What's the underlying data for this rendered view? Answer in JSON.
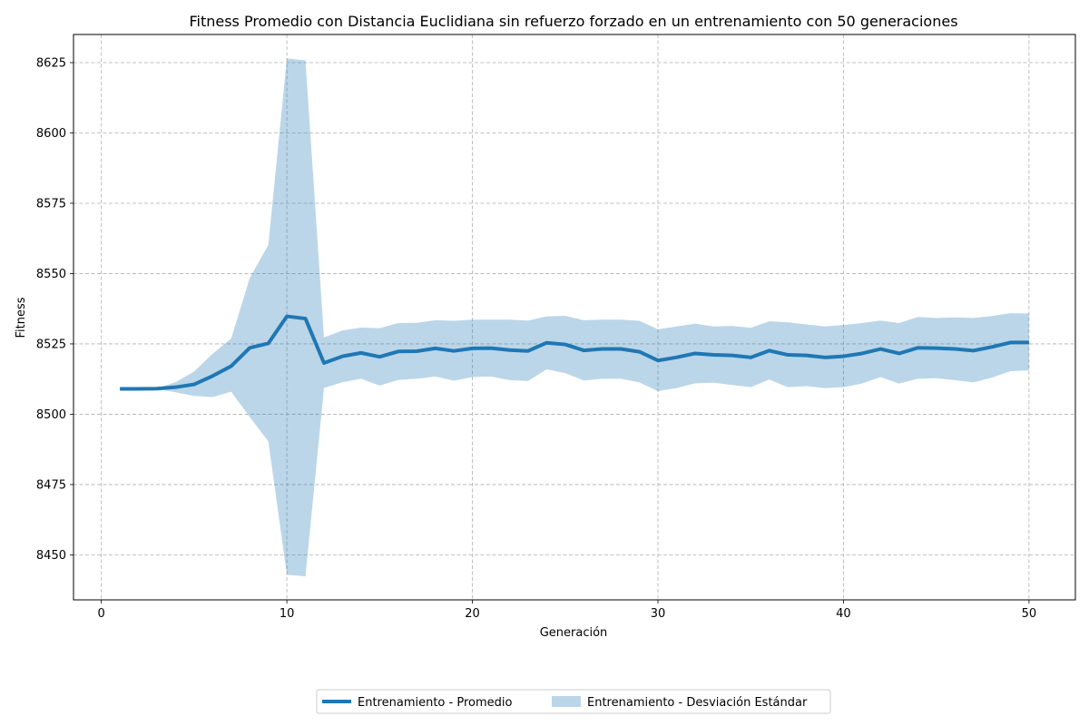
{
  "chart_data": {
    "type": "line",
    "title": "Fitness Promedio con Distancia Euclidiana sin refuerzo forzado en un entrenamiento con 50 generaciones",
    "xlabel": "Generación",
    "ylabel": "Fitness",
    "xlim": [
      -1.5,
      52.5
    ],
    "ylim": [
      8434,
      8635
    ],
    "xticks": [
      0,
      10,
      20,
      30,
      40,
      50
    ],
    "yticks": [
      8450,
      8475,
      8500,
      8525,
      8550,
      8575,
      8600,
      8625
    ],
    "grid": true,
    "legend_position": "bottom-center",
    "colors": {
      "line": "#1f77b4",
      "band": "#1f77b4",
      "grid": "#b0b0b0"
    },
    "x": [
      1,
      2,
      3,
      4,
      5,
      6,
      7,
      8,
      9,
      10,
      11,
      12,
      13,
      14,
      15,
      16,
      17,
      18,
      19,
      20,
      21,
      22,
      23,
      24,
      25,
      26,
      27,
      28,
      29,
      30,
      31,
      32,
      33,
      34,
      35,
      36,
      37,
      38,
      39,
      40,
      41,
      42,
      43,
      44,
      45,
      46,
      47,
      48,
      49,
      50
    ],
    "series": [
      {
        "name": "Entrenamiento  - Promedio",
        "kind": "line",
        "values": [
          8509.0,
          8509.0,
          8509.1,
          8509.6,
          8510.6,
          8513.6,
          8517.1,
          8523.6,
          8525.2,
          8534.8,
          8534.0,
          8518.2,
          8520.6,
          8521.8,
          8520.4,
          8522.3,
          8522.4,
          8523.4,
          8522.5,
          8523.4,
          8523.5,
          8522.8,
          8522.5,
          8525.4,
          8524.8,
          8522.7,
          8523.2,
          8523.2,
          8522.2,
          8519.1,
          8520.2,
          8521.6,
          8521.1,
          8520.9,
          8520.2,
          8522.6,
          8521.1,
          8520.9,
          8520.2,
          8520.6,
          8521.6,
          8523.2,
          8521.6,
          8523.6,
          8523.5,
          8523.2,
          8522.6,
          8523.9,
          8525.5,
          8525.5
        ]
      },
      {
        "name": "Entrenamiento  - Desviación Estándar",
        "kind": "band",
        "upper": [
          8509.0,
          8509.0,
          8509.2,
          8511.4,
          8515.2,
          8521.5,
          8526.9,
          8548.4,
          8560.2,
          8626.5,
          8625.8,
          8527.3,
          8529.8,
          8530.8,
          8530.6,
          8532.4,
          8532.5,
          8533.4,
          8533.2,
          8533.6,
          8533.6,
          8533.6,
          8533.3,
          8534.8,
          8535.0,
          8533.4,
          8533.6,
          8533.6,
          8533.2,
          8530.2,
          8531.2,
          8532.2,
          8531.2,
          8531.4,
          8530.7,
          8533.0,
          8532.7,
          8531.9,
          8531.2,
          8531.7,
          8532.4,
          8533.3,
          8532.4,
          8534.6,
          8534.2,
          8534.4,
          8534.2,
          8534.9,
          8535.9,
          8535.8
        ],
        "lower": [
          8509.0,
          8509.0,
          8509.0,
          8507.8,
          8506.5,
          8506.1,
          8508.0,
          8499.0,
          8490.4,
          8442.9,
          8442.4,
          8509.3,
          8511.4,
          8512.6,
          8510.2,
          8512.2,
          8512.6,
          8513.4,
          8511.9,
          8513.2,
          8513.4,
          8512.1,
          8511.8,
          8516.0,
          8514.6,
          8512.0,
          8512.6,
          8512.6,
          8511.3,
          8508.2,
          8509.3,
          8511.0,
          8511.2,
          8510.4,
          8509.6,
          8512.3,
          8509.6,
          8510.0,
          8509.3,
          8509.6,
          8510.9,
          8513.2,
          8510.9,
          8512.6,
          8512.8,
          8512.1,
          8511.3,
          8513.0,
          8515.3,
          8515.6
        ]
      }
    ]
  }
}
